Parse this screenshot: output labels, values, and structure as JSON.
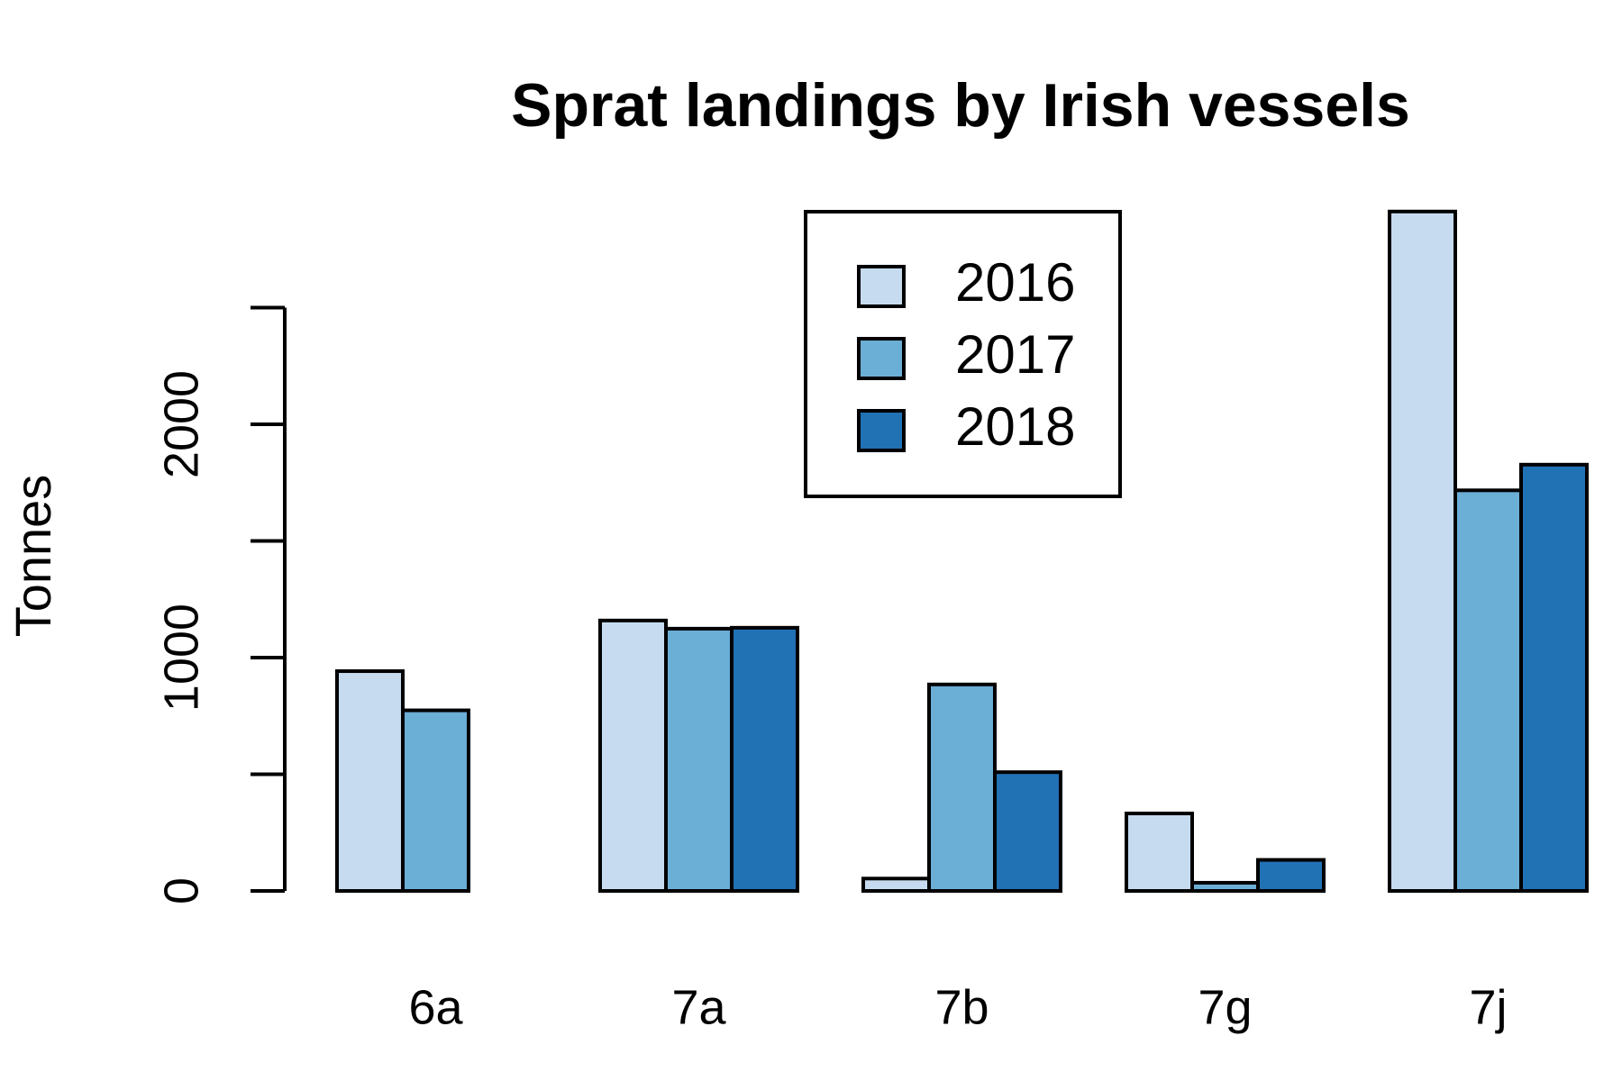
{
  "chart_data": {
    "type": "bar",
    "title": "Sprat landings by Irish vessels",
    "y_label": "Tonnes",
    "categories": [
      "6a",
      "7a",
      "7b",
      "7g",
      "7j"
    ],
    "series": [
      {
        "name": "2016",
        "color": "#c6dbef",
        "values": [
          942,
          1159,
          53,
          332,
          2912
        ]
      },
      {
        "name": "2017",
        "color": "#6baed6",
        "values": [
          774,
          1124,
          885,
          35,
          1717
        ]
      },
      {
        "name": "2018",
        "color": "#2171b5",
        "values": [
          0,
          1128,
          509,
          133,
          1827
        ]
      }
    ],
    "ylim": [
      0,
      3000
    ],
    "yticks": [
      0,
      1000,
      2000
    ],
    "yminorticks": [
      500,
      1500,
      2500
    ],
    "grid": false,
    "legend_position": "top"
  }
}
